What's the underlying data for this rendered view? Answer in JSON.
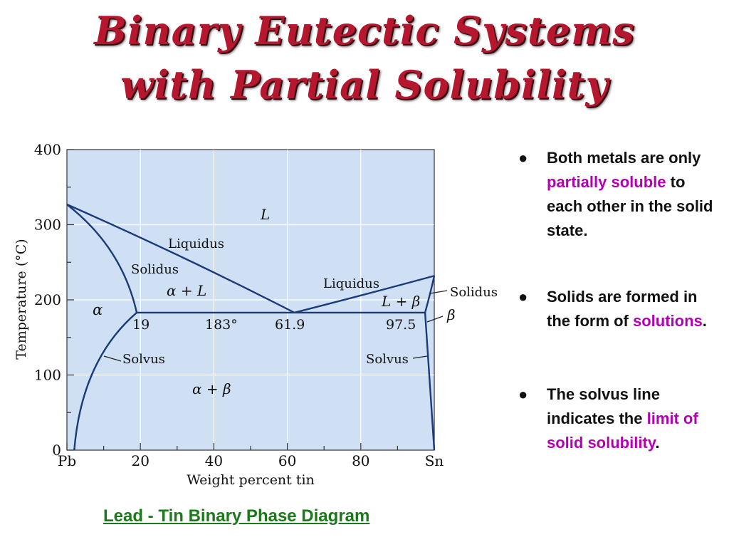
{
  "title": {
    "line1": "Binary Eutectic Systems",
    "line2": "with Partial Solubility"
  },
  "diagram": {
    "y_axis_label": "Temperature (°C)",
    "y_ticks": [
      "400",
      "300",
      "200",
      "100",
      "0"
    ],
    "x_ticks": [
      "Pb",
      "20",
      "40",
      "60",
      "80",
      "Sn"
    ],
    "x_axis_label": "Weight percent tin",
    "regions": {
      "liquid": "L",
      "alpha": "α",
      "alpha_liquid": "α + L",
      "alpha_beta": "α + β",
      "liquid_beta": "L + β",
      "beta": "β"
    },
    "curve_labels": {
      "liquidus_left": "Liquidus",
      "liquidus_right": "Liquidus",
      "solidus_left": "Solidus",
      "solidus_right": "Solidus",
      "solvus_left": "Solvus",
      "solvus_right": "Solvus"
    },
    "eutectic_labels": {
      "alpha_limit": "19",
      "temperature": "183°",
      "eutectic_composition": "61.9",
      "beta_limit": "97.5"
    },
    "points": {
      "pb_melting": {
        "wt_sn": 0,
        "temp_c": 327
      },
      "sn_melting": {
        "wt_sn": 100,
        "temp_c": 232
      },
      "eutectic": {
        "wt_sn": 61.9,
        "temp_c": 183
      },
      "alpha_max": {
        "wt_sn": 19,
        "temp_c": 183
      },
      "beta_max": {
        "wt_sn": 97.5,
        "temp_c": 183
      }
    },
    "axis_ranges": {
      "x": [
        0,
        100
      ],
      "y": [
        0,
        400
      ]
    },
    "colors": {
      "fill": "#cfe0f5",
      "line": "#1b3a78",
      "text": "#111111"
    }
  },
  "bullets": [
    {
      "dot": "●",
      "before": "Both metals are only ",
      "highlight": "partially soluble",
      "after": " to each other in the solid state."
    },
    {
      "dot": "●",
      "before": "Solids are formed in the form of ",
      "highlight": "solutions",
      "after": "."
    },
    {
      "dot": "●",
      "before": "The solvus line indicates the ",
      "highlight": "limit of solid solubility",
      "after": "."
    }
  ],
  "caption": "Lead - Tin Binary Phase Diagram",
  "colors": {
    "title": "#b5172f",
    "highlight": "#b300b3",
    "caption": "#1a7a1a"
  }
}
